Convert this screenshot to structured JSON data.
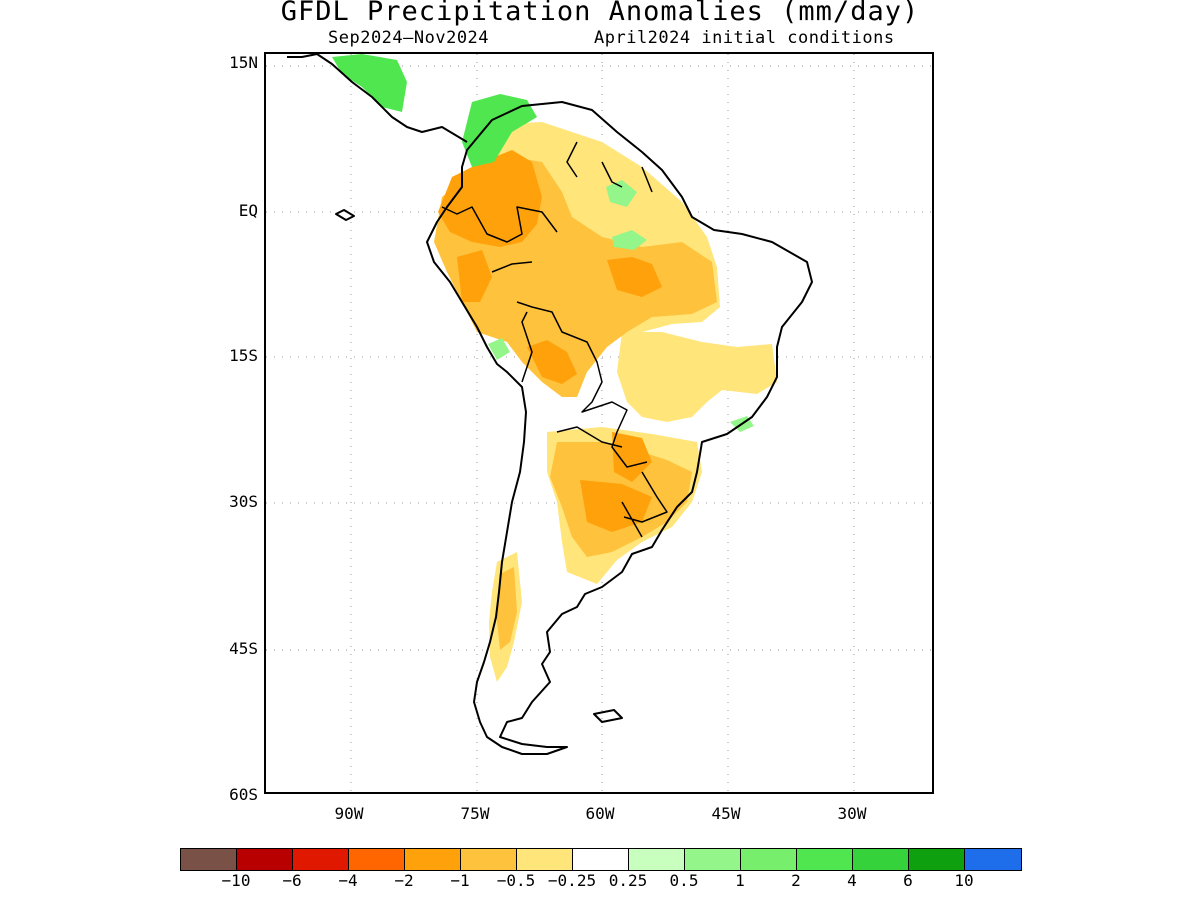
{
  "title": "GFDL Precipitation Anomalies (mm/day)",
  "subtitle_left": "Sep2024—Nov2024",
  "subtitle_right": "April2024 initial conditions",
  "map": {
    "lat_range": [
      -60,
      15
    ],
    "lon_range": [
      -100,
      -20
    ],
    "lat_labels": [
      "15N",
      "EQ",
      "15S",
      "30S",
      "45S",
      "60S"
    ],
    "lon_labels": [
      "90W",
      "75W",
      "60W",
      "45W",
      "30W"
    ],
    "grid": "dotted"
  },
  "colorbar": {
    "colors": [
      "#7a5147",
      "#b90000",
      "#e01800",
      "#ff6600",
      "#ffa10a",
      "#ffc23c",
      "#ffe57a",
      "#ffffff",
      "#c8ffbe",
      "#94f58a",
      "#78ef6c",
      "#50e650",
      "#36d23c",
      "#0ea00e",
      "#1e6eeb"
    ],
    "labels": [
      "−10",
      "−6",
      "−4",
      "−2",
      "−1",
      "−0.5",
      "−0.25",
      "0.25",
      "0.5",
      "1",
      "2",
      "4",
      "6",
      "10"
    ]
  },
  "legend_colors": {
    "dry_strong": "#ffa10a",
    "dry_moderate": "#ffc23c",
    "dry_weak": "#ffe57a",
    "wet_weak": "#94f58a",
    "wet_moderate": "#50e650"
  }
}
